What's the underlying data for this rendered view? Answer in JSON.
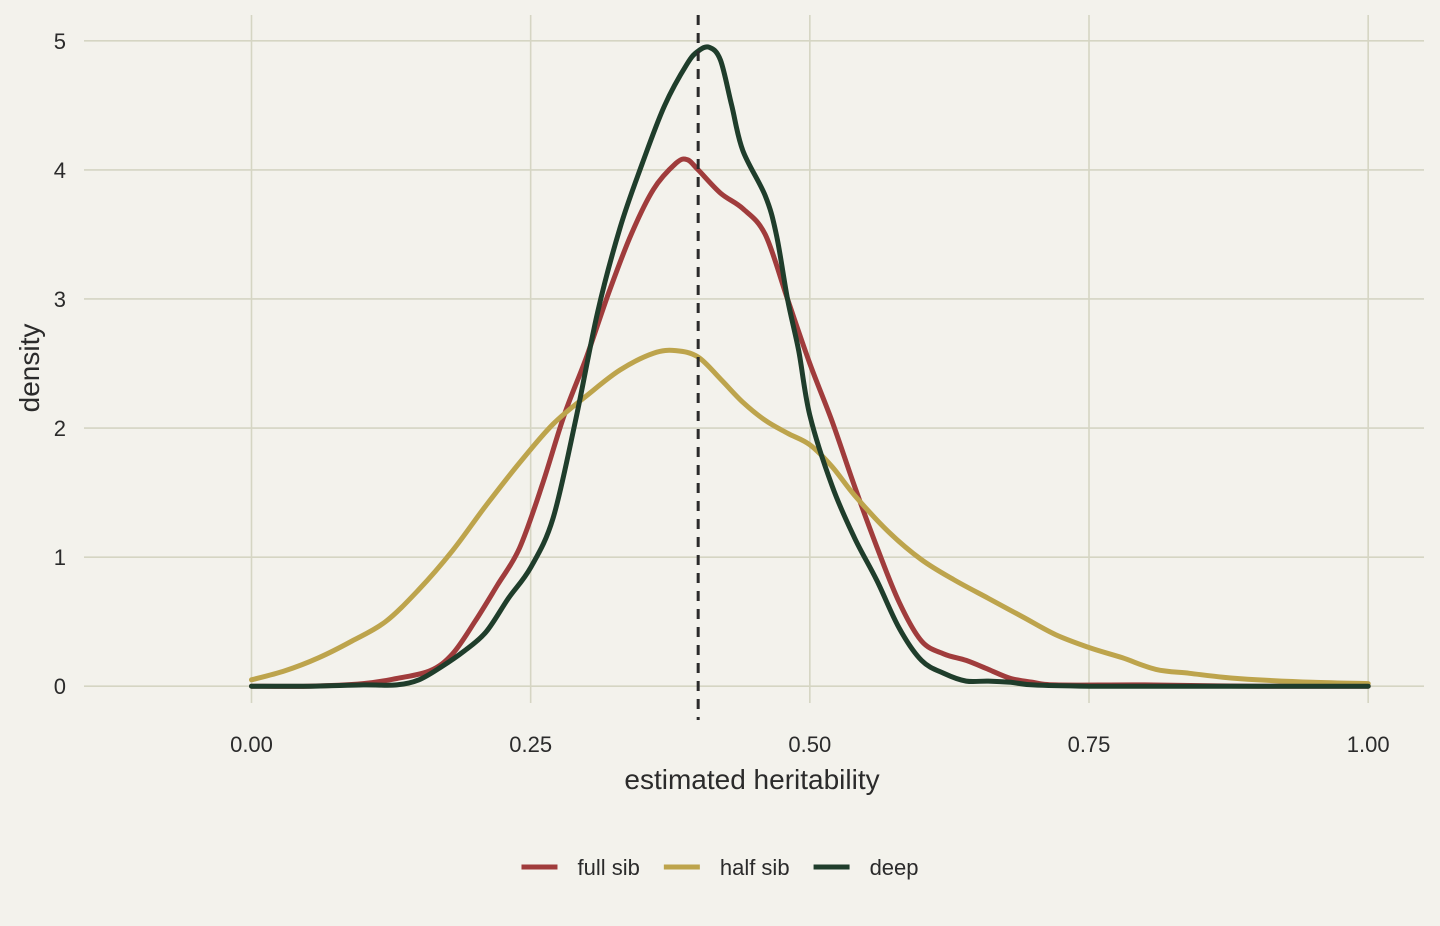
{
  "chart_data": {
    "type": "line",
    "title": "",
    "xlabel": "estimated heritability",
    "ylabel": "density",
    "xlim": [
      -0.15,
      1.05
    ],
    "ylim": [
      -0.13,
      5.2
    ],
    "x_ticks": [
      0.0,
      0.25,
      0.5,
      0.75,
      1.0
    ],
    "x_tick_labels": [
      "0.00",
      "0.25",
      "0.50",
      "0.75",
      "1.00"
    ],
    "y_ticks": [
      0,
      1,
      2,
      3,
      4,
      5
    ],
    "y_tick_labels": [
      "0",
      "1",
      "2",
      "3",
      "4",
      "5"
    ],
    "grid": true,
    "legend_position": "bottom",
    "reference_line": {
      "x": 0.4,
      "style": "dashed",
      "color": "#2b2b2b"
    },
    "series": [
      {
        "name": "full sib",
        "color": "#a03c3c",
        "points": [
          [
            0.0,
            0.0
          ],
          [
            0.05,
            0.0
          ],
          [
            0.1,
            0.02
          ],
          [
            0.13,
            0.06
          ],
          [
            0.16,
            0.12
          ],
          [
            0.18,
            0.25
          ],
          [
            0.2,
            0.5
          ],
          [
            0.22,
            0.78
          ],
          [
            0.24,
            1.07
          ],
          [
            0.26,
            1.55
          ],
          [
            0.28,
            2.1
          ],
          [
            0.3,
            2.55
          ],
          [
            0.32,
            3.05
          ],
          [
            0.34,
            3.5
          ],
          [
            0.36,
            3.85
          ],
          [
            0.38,
            4.05
          ],
          [
            0.39,
            4.08
          ],
          [
            0.4,
            4.0
          ],
          [
            0.42,
            3.82
          ],
          [
            0.44,
            3.7
          ],
          [
            0.46,
            3.5
          ],
          [
            0.48,
            3.0
          ],
          [
            0.5,
            2.5
          ],
          [
            0.52,
            2.05
          ],
          [
            0.54,
            1.55
          ],
          [
            0.56,
            1.08
          ],
          [
            0.58,
            0.65
          ],
          [
            0.6,
            0.35
          ],
          [
            0.62,
            0.25
          ],
          [
            0.64,
            0.2
          ],
          [
            0.66,
            0.13
          ],
          [
            0.68,
            0.06
          ],
          [
            0.7,
            0.03
          ],
          [
            0.72,
            0.01
          ],
          [
            0.8,
            0.01
          ],
          [
            0.9,
            0.0
          ],
          [
            1.0,
            0.0
          ]
        ]
      },
      {
        "name": "half sib",
        "color": "#bda44c",
        "points": [
          [
            0.0,
            0.05
          ],
          [
            0.03,
            0.12
          ],
          [
            0.06,
            0.22
          ],
          [
            0.09,
            0.35
          ],
          [
            0.12,
            0.5
          ],
          [
            0.15,
            0.75
          ],
          [
            0.18,
            1.05
          ],
          [
            0.21,
            1.4
          ],
          [
            0.24,
            1.73
          ],
          [
            0.27,
            2.03
          ],
          [
            0.3,
            2.25
          ],
          [
            0.33,
            2.45
          ],
          [
            0.36,
            2.58
          ],
          [
            0.38,
            2.6
          ],
          [
            0.4,
            2.55
          ],
          [
            0.42,
            2.38
          ],
          [
            0.44,
            2.2
          ],
          [
            0.46,
            2.06
          ],
          [
            0.48,
            1.96
          ],
          [
            0.5,
            1.87
          ],
          [
            0.52,
            1.7
          ],
          [
            0.54,
            1.48
          ],
          [
            0.57,
            1.2
          ],
          [
            0.6,
            0.98
          ],
          [
            0.63,
            0.82
          ],
          [
            0.66,
            0.68
          ],
          [
            0.69,
            0.54
          ],
          [
            0.72,
            0.4
          ],
          [
            0.75,
            0.3
          ],
          [
            0.78,
            0.22
          ],
          [
            0.81,
            0.13
          ],
          [
            0.84,
            0.1
          ],
          [
            0.87,
            0.07
          ],
          [
            0.9,
            0.05
          ],
          [
            0.95,
            0.03
          ],
          [
            1.0,
            0.02
          ]
        ]
      },
      {
        "name": "deep",
        "color": "#1f3d2b",
        "points": [
          [
            0.0,
            0.0
          ],
          [
            0.05,
            0.0
          ],
          [
            0.1,
            0.01
          ],
          [
            0.13,
            0.01
          ],
          [
            0.15,
            0.05
          ],
          [
            0.17,
            0.15
          ],
          [
            0.19,
            0.27
          ],
          [
            0.21,
            0.42
          ],
          [
            0.23,
            0.68
          ],
          [
            0.25,
            0.92
          ],
          [
            0.27,
            1.3
          ],
          [
            0.29,
            2.05
          ],
          [
            0.31,
            2.9
          ],
          [
            0.33,
            3.55
          ],
          [
            0.35,
            4.05
          ],
          [
            0.37,
            4.5
          ],
          [
            0.39,
            4.82
          ],
          [
            0.4,
            4.92
          ],
          [
            0.41,
            4.95
          ],
          [
            0.42,
            4.85
          ],
          [
            0.43,
            4.5
          ],
          [
            0.44,
            4.15
          ],
          [
            0.46,
            3.8
          ],
          [
            0.47,
            3.5
          ],
          [
            0.48,
            3.0
          ],
          [
            0.49,
            2.6
          ],
          [
            0.5,
            2.1
          ],
          [
            0.52,
            1.55
          ],
          [
            0.54,
            1.15
          ],
          [
            0.56,
            0.82
          ],
          [
            0.58,
            0.45
          ],
          [
            0.6,
            0.2
          ],
          [
            0.62,
            0.1
          ],
          [
            0.64,
            0.04
          ],
          [
            0.66,
            0.04
          ],
          [
            0.68,
            0.03
          ],
          [
            0.7,
            0.01
          ],
          [
            0.75,
            0.0
          ],
          [
            0.8,
            0.0
          ],
          [
            0.9,
            0.0
          ],
          [
            1.0,
            0.0
          ]
        ]
      }
    ]
  }
}
